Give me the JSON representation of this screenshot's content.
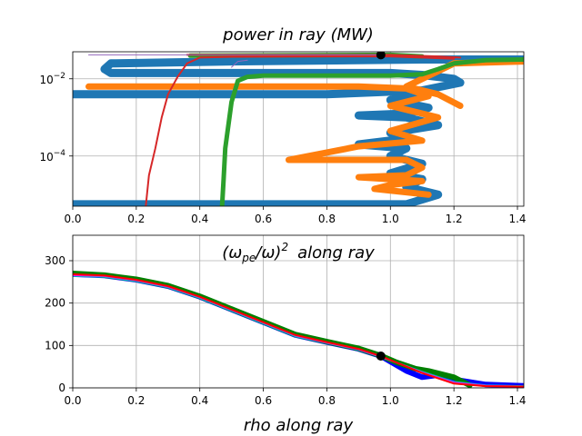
{
  "chart_data": [
    {
      "type": "line",
      "title": "power in ray (MW)",
      "yscale": "log",
      "xlim": [
        0,
        1.42
      ],
      "ylim_exp": [
        -5.3,
        -1.3
      ],
      "x_ticks": [
        "0.0",
        "0.2",
        "0.4",
        "0.6",
        "0.8",
        "1.0",
        "1.2",
        "1.4"
      ],
      "y_ticks": [
        {
          "base": "10",
          "exp": "−2",
          "log": -2
        },
        {
          "base": "10",
          "exp": "−4",
          "log": -4
        }
      ],
      "grid": true,
      "colors": {
        "blue": "#1f77b4",
        "orange": "#ff7f0e",
        "green": "#2ca02c",
        "red": "#d62728",
        "purple": "#9467bd",
        "marker": "#000000"
      },
      "series": [
        {
          "color": "blue",
          "width": 9,
          "points": [
            [
              1.42,
              -1.5
            ],
            [
              1.1,
              -1.5
            ],
            [
              0.5,
              -1.55
            ],
            [
              0.12,
              -1.6
            ],
            [
              0.1,
              -1.75
            ],
            [
              0.12,
              -1.85
            ],
            [
              0.5,
              -1.85
            ],
            [
              1.0,
              -1.85
            ],
            [
              1.1,
              -1.9
            ],
            [
              1.2,
              -2.0
            ],
            [
              1.22,
              -2.1
            ],
            [
              1.1,
              -2.3
            ],
            [
              0.8,
              -2.4
            ],
            [
              0.0,
              -2.4
            ]
          ]
        },
        {
          "color": "blue",
          "width": 9,
          "points": [
            [
              0.0,
              -5.25
            ],
            [
              1.05,
              -5.25
            ],
            [
              1.15,
              -5.0
            ],
            [
              1.05,
              -4.8
            ],
            [
              1.1,
              -4.6
            ],
            [
              1.0,
              -4.45
            ],
            [
              1.1,
              -4.2
            ],
            [
              1.0,
              -4.0
            ],
            [
              1.05,
              -3.8
            ],
            [
              0.9,
              -3.7
            ],
            [
              1.05,
              -3.55
            ],
            [
              1.0,
              -3.4
            ],
            [
              1.15,
              -3.2
            ],
            [
              1.05,
              -3.0
            ],
            [
              0.9,
              -2.95
            ],
            [
              1.05,
              -2.9
            ],
            [
              1.12,
              -2.75
            ],
            [
              1.0,
              -2.55
            ],
            [
              1.1,
              -2.35
            ]
          ]
        },
        {
          "color": "orange",
          "width": 7,
          "points": [
            [
              0.05,
              -2.2
            ],
            [
              0.9,
              -2.2
            ],
            [
              1.05,
              -2.25
            ],
            [
              1.12,
              -2.45
            ],
            [
              1.0,
              -2.7
            ],
            [
              1.15,
              -3.0
            ],
            [
              1.0,
              -3.35
            ],
            [
              1.1,
              -3.6
            ],
            [
              0.9,
              -3.75
            ],
            [
              0.68,
              -4.1
            ],
            [
              1.05,
              -4.1
            ],
            [
              1.1,
              -4.3
            ],
            [
              1.05,
              -4.5
            ],
            [
              0.9,
              -4.55
            ],
            [
              1.1,
              -4.65
            ],
            [
              1.0,
              -4.75
            ],
            [
              0.95,
              -4.85
            ],
            [
              1.12,
              -5.0
            ]
          ]
        },
        {
          "color": "orange",
          "width": 7,
          "points": [
            [
              1.22,
              -2.7
            ],
            [
              1.15,
              -2.4
            ],
            [
              1.05,
              -2.2
            ],
            [
              1.2,
              -1.6
            ],
            [
              1.42,
              -1.55
            ]
          ]
        },
        {
          "color": "green",
          "width": 5,
          "points": [
            [
              0.47,
              -5.3
            ],
            [
              0.475,
              -4.6
            ],
            [
              0.48,
              -3.8
            ],
            [
              0.5,
              -2.6
            ],
            [
              0.52,
              -2.05
            ],
            [
              0.55,
              -1.95
            ],
            [
              0.6,
              -1.92
            ],
            [
              1.0,
              -1.92
            ],
            [
              1.1,
              -1.88
            ],
            [
              1.15,
              -1.75
            ],
            [
              1.2,
              -1.6
            ],
            [
              1.3,
              -1.52
            ],
            [
              1.42,
              -1.5
            ]
          ]
        },
        {
          "color": "green",
          "width": 5,
          "points": [
            [
              0.37,
              -1.4
            ],
            [
              1.0,
              -1.38
            ],
            [
              1.1,
              -1.42
            ]
          ]
        },
        {
          "color": "red",
          "width": 2,
          "points": [
            [
              0.23,
              -5.3
            ],
            [
              0.24,
              -4.5
            ],
            [
              0.26,
              -3.8
            ],
            [
              0.28,
              -3.0
            ],
            [
              0.3,
              -2.4
            ],
            [
              0.33,
              -1.95
            ],
            [
              0.36,
              -1.6
            ],
            [
              0.4,
              -1.45
            ],
            [
              0.5,
              -1.43
            ],
            [
              0.8,
              -1.42
            ],
            [
              1.0,
              -1.42
            ],
            [
              1.1,
              -1.45
            ],
            [
              1.2,
              -1.48
            ]
          ]
        },
        {
          "color": "red",
          "width": 2,
          "points": [
            [
              0.36,
              -1.38
            ],
            [
              1.0,
              -1.38
            ],
            [
              1.15,
              -1.42
            ],
            [
              1.22,
              -1.45
            ]
          ]
        },
        {
          "color": "purple",
          "width": 1,
          "points": [
            [
              0.05,
              -1.38
            ],
            [
              0.8,
              -1.38
            ],
            [
              0.97,
              -1.38
            ]
          ]
        },
        {
          "color": "purple",
          "width": 1,
          "points": [
            [
              0.5,
              -1.7
            ],
            [
              0.52,
              -1.55
            ],
            [
              0.55,
              -1.52
            ]
          ]
        }
      ],
      "marker": {
        "x": 0.97,
        "ylog": -1.38
      }
    },
    {
      "type": "line",
      "title_parts": {
        "omega_pe": "ω",
        "pe": "pe",
        "slash": "/ω)",
        "sup": "2",
        "rest": "along ray"
      },
      "xlabel": "rho along ray",
      "xlim": [
        0,
        1.42
      ],
      "ylim": [
        0,
        360
      ],
      "x_ticks": [
        "0.0",
        "0.2",
        "0.4",
        "0.6",
        "0.8",
        "1.0",
        "1.2",
        "1.4"
      ],
      "y_ticks": [
        "0",
        "100",
        "200",
        "300"
      ],
      "grid": true,
      "series": [
        {
          "color": "#0000ff",
          "width": 6,
          "points": [
            [
              0.0,
              268
            ],
            [
              0.1,
              265
            ],
            [
              0.2,
              255
            ],
            [
              0.3,
              240
            ],
            [
              0.4,
              215
            ],
            [
              0.5,
              185
            ],
            [
              0.6,
              155
            ],
            [
              0.7,
              125
            ],
            [
              0.8,
              108
            ],
            [
              0.9,
              92
            ],
            [
              0.97,
              75
            ],
            [
              1.05,
              40
            ],
            [
              1.1,
              25
            ],
            [
              1.15,
              30
            ],
            [
              1.2,
              20
            ],
            [
              1.3,
              8
            ],
            [
              1.42,
              5
            ]
          ]
        },
        {
          "color": "#008000",
          "width": 6,
          "points": [
            [
              0.0,
              270
            ],
            [
              0.1,
              266
            ],
            [
              0.2,
              256
            ],
            [
              0.3,
              241
            ],
            [
              0.4,
              216
            ],
            [
              0.5,
              186
            ],
            [
              0.6,
              156
            ],
            [
              0.7,
              126
            ],
            [
              0.8,
              109
            ],
            [
              0.9,
              93
            ],
            [
              0.97,
              76
            ],
            [
              1.02,
              60
            ],
            [
              1.08,
              45
            ],
            [
              1.12,
              40
            ],
            [
              1.2,
              25
            ],
            [
              1.25,
              6
            ]
          ]
        },
        {
          "color": "#00bfbf",
          "width": 2,
          "points": [
            [
              0.0,
              264
            ],
            [
              0.1,
              262
            ],
            [
              0.2,
              252
            ],
            [
              0.3,
              237
            ],
            [
              0.4,
              212
            ],
            [
              0.5,
              182
            ],
            [
              0.6,
              152
            ],
            [
              0.7,
              122
            ],
            [
              0.8,
              106
            ],
            [
              0.9,
              90
            ],
            [
              0.97,
              73
            ],
            [
              1.1,
              38
            ],
            [
              1.2,
              14
            ],
            [
              1.3,
              6
            ],
            [
              1.42,
              4
            ]
          ]
        },
        {
          "color": "#ff00ff",
          "width": 2,
          "points": [
            [
              0.0,
              266
            ],
            [
              0.1,
              264
            ],
            [
              0.2,
              254
            ],
            [
              0.3,
              239
            ],
            [
              0.4,
              214
            ],
            [
              0.5,
              184
            ],
            [
              0.6,
              154
            ],
            [
              0.7,
              124
            ],
            [
              0.8,
              107
            ],
            [
              0.9,
              91
            ],
            [
              0.97,
              74
            ],
            [
              1.1,
              36
            ],
            [
              1.2,
              12
            ],
            [
              1.3,
              5
            ],
            [
              1.42,
              3
            ]
          ]
        },
        {
          "color": "#ff0000",
          "width": 2,
          "points": [
            [
              0.0,
              268
            ],
            [
              0.1,
              265
            ],
            [
              0.2,
              255
            ],
            [
              0.3,
              240
            ],
            [
              0.4,
              215
            ],
            [
              0.5,
              185
            ],
            [
              0.6,
              155
            ],
            [
              0.7,
              125
            ],
            [
              0.8,
              108
            ],
            [
              0.9,
              92
            ],
            [
              0.97,
              75
            ],
            [
              1.1,
              35
            ],
            [
              1.2,
              10
            ],
            [
              1.3,
              4
            ],
            [
              1.42,
              3
            ]
          ]
        }
      ],
      "marker": {
        "x": 0.97,
        "y": 75
      }
    }
  ]
}
